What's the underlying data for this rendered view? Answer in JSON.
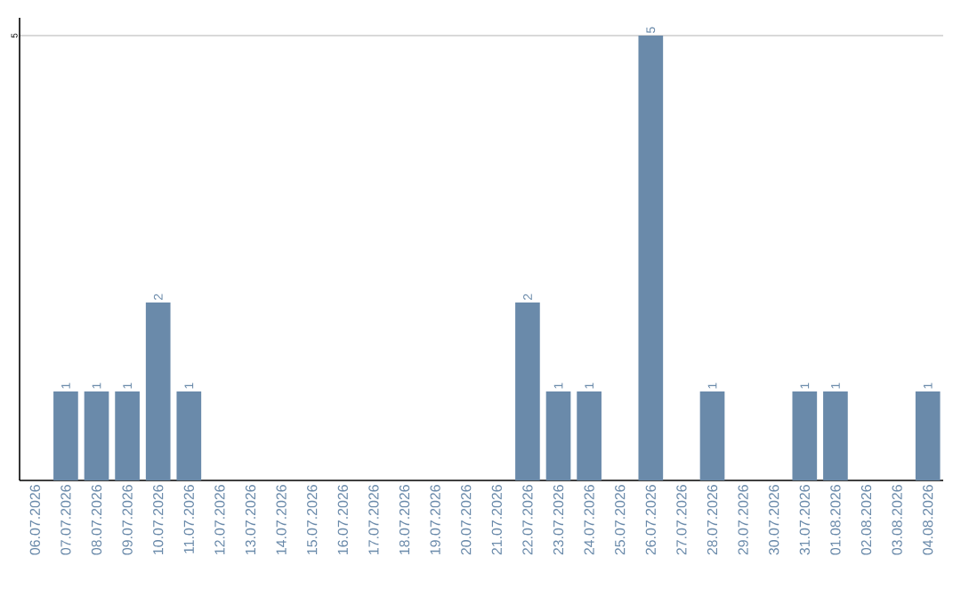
{
  "chart_data": {
    "type": "bar",
    "categories": [
      "06.07.2026",
      "07.07.2026",
      "08.07.2026",
      "09.07.2026",
      "10.07.2026",
      "11.07.2026",
      "12.07.2026",
      "13.07.2026",
      "14.07.2026",
      "15.07.2026",
      "16.07.2026",
      "17.07.2026",
      "18.07.2026",
      "19.07.2026",
      "20.07.2026",
      "21.07.2026",
      "22.07.2026",
      "23.07.2026",
      "24.07.2026",
      "25.07.2026",
      "26.07.2026",
      "27.07.2026",
      "28.07.2026",
      "29.07.2026",
      "30.07.2026",
      "31.07.2026",
      "01.08.2026",
      "02.08.2026",
      "03.08.2026",
      "04.08.2026"
    ],
    "values": [
      0,
      1,
      1,
      1,
      2,
      1,
      0,
      0,
      0,
      0,
      0,
      0,
      0,
      0,
      0,
      0,
      2,
      1,
      1,
      0,
      5,
      0,
      1,
      0,
      0,
      1,
      1,
      0,
      0,
      1
    ],
    "value_labels": [
      null,
      "1",
      "1",
      "1",
      "2",
      "1",
      null,
      null,
      null,
      null,
      null,
      null,
      null,
      null,
      null,
      null,
      "2",
      "1",
      "1",
      null,
      "5",
      null,
      "1",
      null,
      null,
      "1",
      "1",
      null,
      null,
      "1"
    ],
    "color": "#6a8aaa",
    "ylim": [
      0,
      5.2
    ],
    "yticks": [
      5
    ],
    "grid": "y"
  }
}
